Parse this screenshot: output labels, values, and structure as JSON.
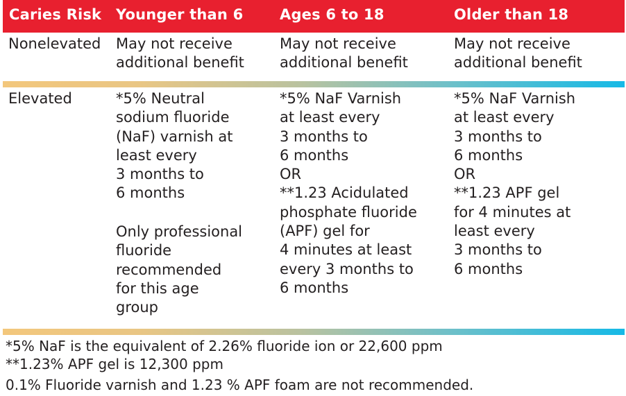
{
  "colors": {
    "header_bg": "#e8202f",
    "header_text": "#ffffff",
    "divider_start": "#f3c77c",
    "divider_end": "#16b9e6"
  },
  "table": {
    "headers": [
      "Caries Risk",
      "Younger than 6",
      "Ages 6 to 18",
      "Older than 18"
    ],
    "rows": [
      {
        "risk": "Nonelevated",
        "younger_than_6": "May not receive\nadditional benefit",
        "ages_6_to_18": "May not receive\nadditional benefit",
        "older_than_18": "May not receive\nadditional benefit"
      },
      {
        "risk": "Elevated",
        "younger_than_6": "*5% Neutral\nsodium fluoride\n(NaF) varnish at\nleast every\n3 months to\n6 months",
        "younger_than_6_note": "Only professional\nfluoride\nrecommended\nfor this age\ngroup",
        "ages_6_to_18": "*5% NaF Varnish\nat least every\n3 months to\n6 months\nOR\n**1.23 Acidulated\nphosphate fluoride\n(APF) gel for\n4 minutes at least\nevery 3 months to\n6 months",
        "older_than_18": "*5% NaF Varnish\nat least every\n3 months to\n6 months\nOR\n**1.23 APF gel\nfor 4 minutes at\nleast every\n3 months to\n6 months"
      }
    ]
  },
  "footnotes": [
    "*5% NaF is the equivalent of 2.26% fluoride ion or 22,600 ppm",
    "**1.23% APF gel is 12,300 ppm",
    "0.1% Fluoride varnish and 1.23 % APF foam are not recommended."
  ]
}
